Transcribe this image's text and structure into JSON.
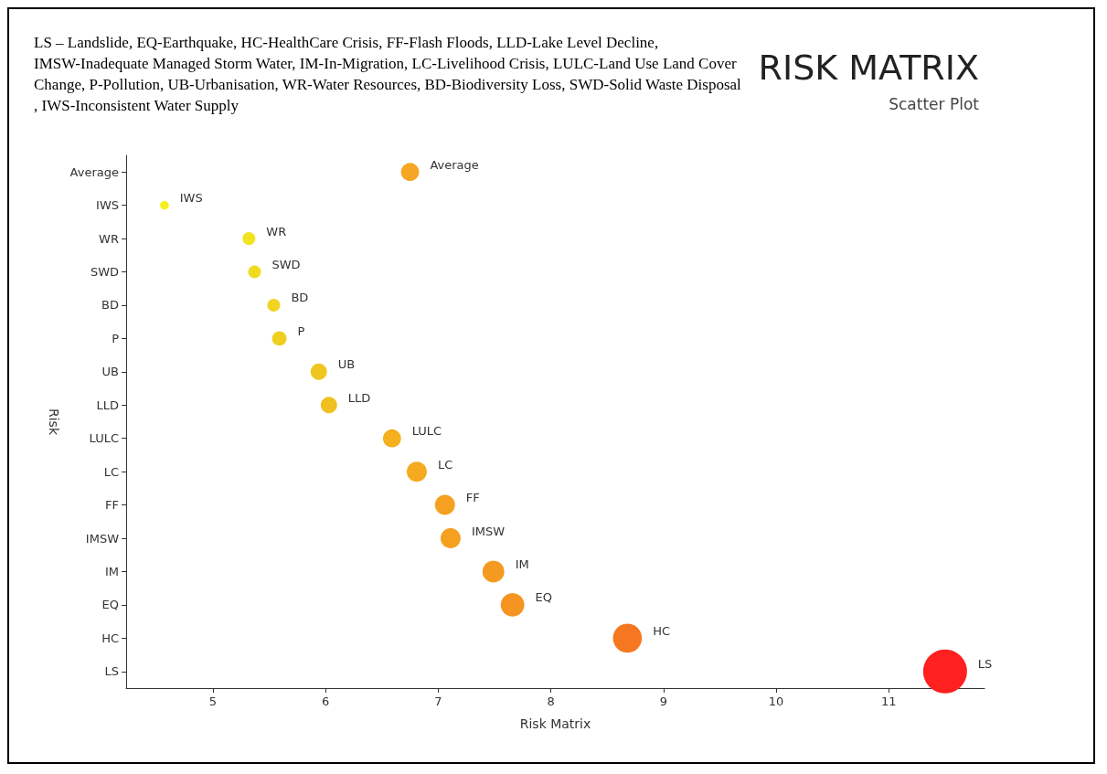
{
  "chart_data": {
    "type": "bubble",
    "title": "RISK MATRIX",
    "subtitle": "Scatter Plot",
    "xlabel": "Risk Matrix",
    "ylabel": "Risk",
    "annotations": [
      "LS – Landslide, EQ-Earthquake, HC-HealthCare Crisis, FF-Flash Floods, LLD-Lake Level Decline, IMSW-Inadequate Managed Storm Water, IM-In-Migration, LC-Livelihood Crisis, LULC-Land Use Land Cover Change, P-Pollution, UB-Urbanisation, WR-Water Resources, BD-Biodiversity Loss, SWD-Solid Waste Disposal, IWS-Inconsistent Water Supply"
    ],
    "categories": [
      "Average",
      "IWS",
      "WR",
      "SWD",
      "BD",
      "P",
      "UB",
      "LLD",
      "LULC",
      "LC",
      "FF",
      "IMSW",
      "IM",
      "EQ",
      "HC",
      "LS"
    ],
    "values": [
      6.75,
      4.57,
      5.32,
      5.37,
      5.54,
      5.59,
      5.94,
      6.03,
      6.59,
      6.81,
      7.06,
      7.11,
      7.49,
      7.66,
      8.68,
      11.5
    ],
    "sizes": [
      0.17,
      0.04,
      0.085,
      0.085,
      0.085,
      0.11,
      0.14,
      0.14,
      0.17,
      0.21,
      0.21,
      0.21,
      0.25,
      0.29,
      0.44,
      1
    ],
    "colors": [
      "#f5a623",
      "#f5f01a",
      "#f2e21f",
      "#f0dc1e",
      "#f0d41f",
      "#f0d01f",
      "#efc51f",
      "#f0c020",
      "#f5b020",
      "#f5aa20",
      "#f5a020",
      "#f5a020",
      "#f59a20",
      "#f59420",
      "#f57820",
      "#ff2020"
    ],
    "orientation": "horizontal",
    "xlim": [
      4.23,
      11.85
    ],
    "xticks": [
      5,
      6,
      7,
      8,
      9,
      10,
      11
    ],
    "grid": false
  }
}
